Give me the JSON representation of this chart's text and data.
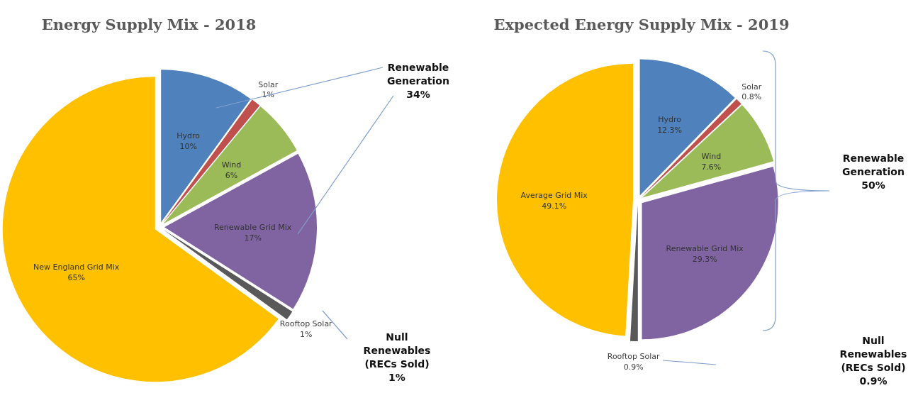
{
  "chart_data": [
    {
      "type": "pie",
      "title": "Energy Supply Mix - 2018",
      "categories": [
        "Hydro",
        "Solar",
        "Wind",
        "Renewable Grid Mix",
        "Rooftop Solar",
        "New England Grid Mix"
      ],
      "values": [
        10,
        1,
        6,
        17,
        1,
        65
      ],
      "value_labels": [
        "10%",
        "1%",
        "6%",
        "17%",
        "1%",
        "65%"
      ],
      "colors": [
        "#4f81bd",
        "#c0504d",
        "#9bbb59",
        "#8064a2",
        "#595959",
        "#ffc000"
      ],
      "annotations": [
        "Renewable\nGeneration\n34%",
        "Null\nRenewables\n(RECs Sold)\n1%"
      ]
    },
    {
      "type": "pie",
      "title": "Expected Energy Supply Mix - 2019",
      "categories": [
        "Hydro",
        "Solar",
        "Wind",
        "Renewable Grid Mix",
        "Rooftop Solar",
        "Average Grid Mix"
      ],
      "values": [
        12.3,
        0.8,
        7.6,
        29.3,
        0.9,
        49.1
      ],
      "value_labels": [
        "12.3%",
        "0.8%",
        "7.6%",
        "29.3%",
        "0.9%",
        "49.1%"
      ],
      "colors": [
        "#4f81bd",
        "#c0504d",
        "#9bbb59",
        "#8064a2",
        "#595959",
        "#ffc000"
      ],
      "annotations": [
        "Renewable\nGeneration\n50%",
        "Null\nRenewables\n(RECs Sold)\n0.9%"
      ]
    }
  ]
}
